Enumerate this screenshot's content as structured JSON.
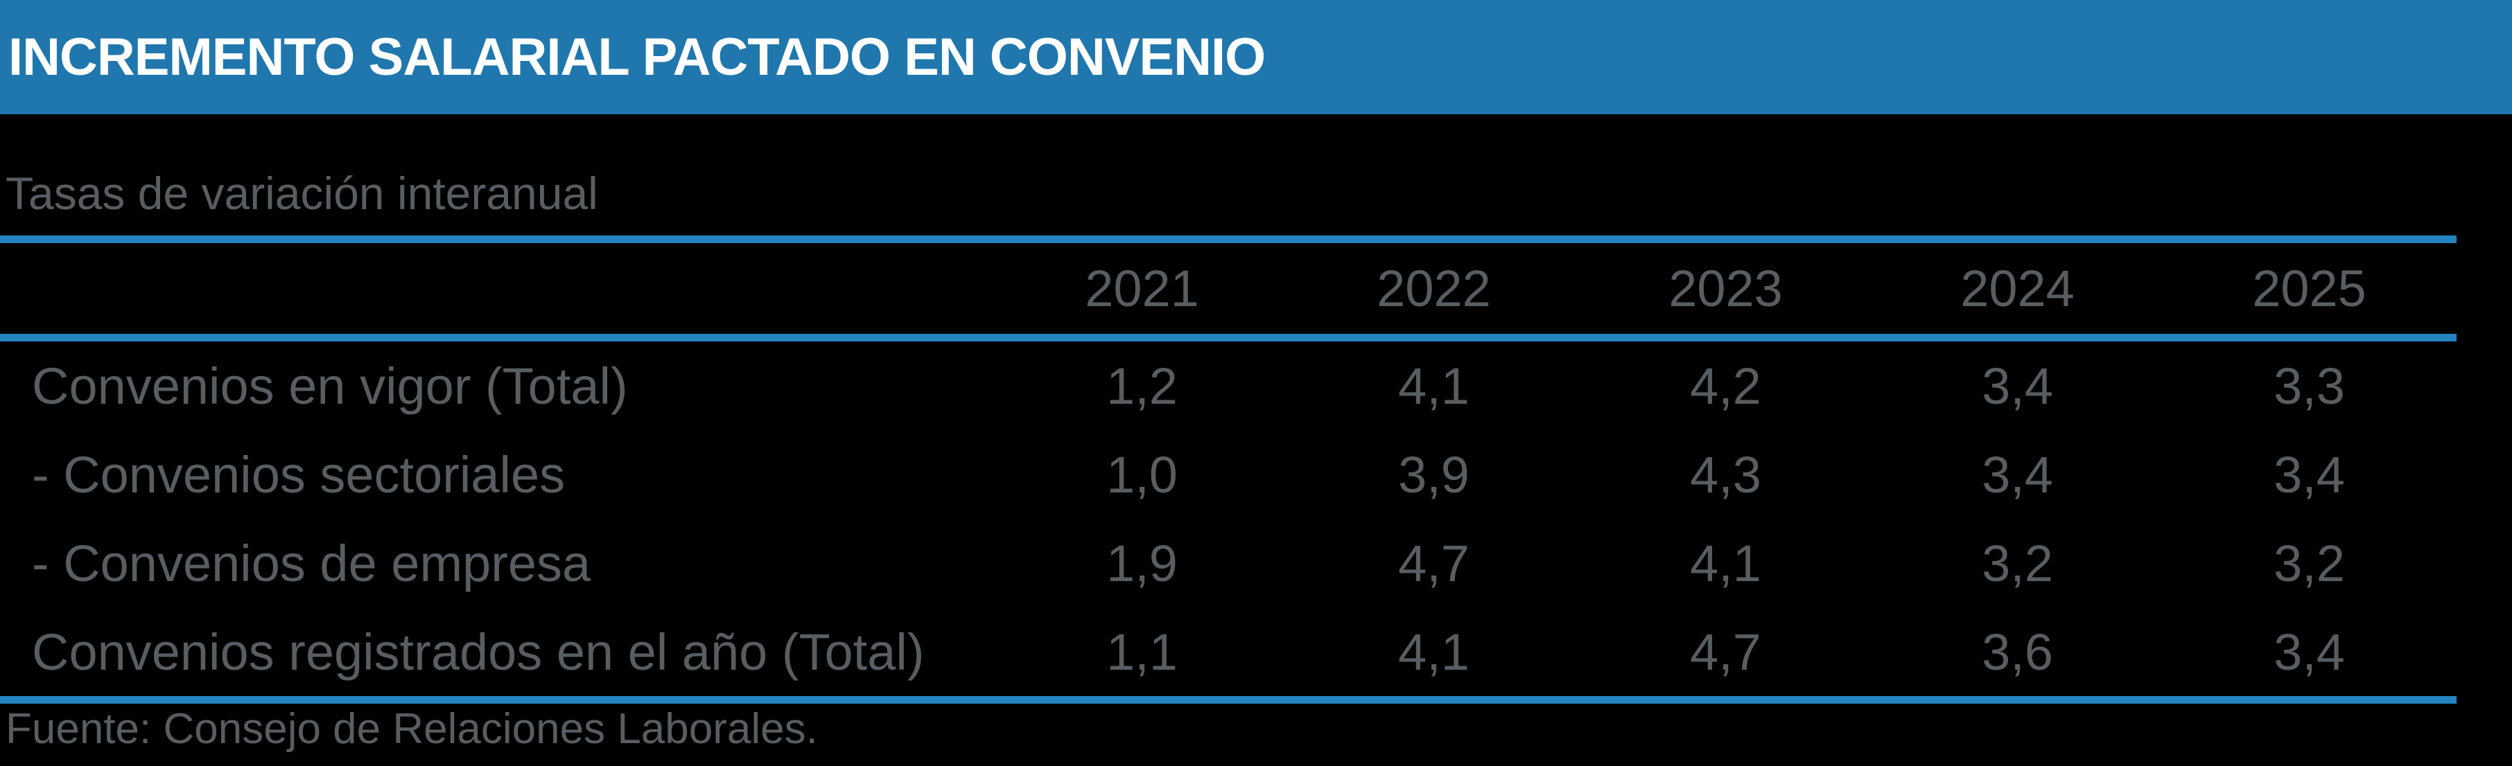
{
  "title_bar": {
    "title": "INCREMENTO SALARIAL PACTADO EN CONVENIO"
  },
  "subtitle": "Tasas de variación interanual",
  "source_note": "Fuente: Consejo de Relaciones Laborales.",
  "colors": {
    "background": "#000000",
    "header_bar": "#1F77AE",
    "rule_blue": "#2484C2",
    "text_gray": "#585D61",
    "title_text": "#FFFFFF"
  },
  "chart_data": {
    "type": "table",
    "title": "INCREMENTO SALARIAL PACTADO EN CONVENIO",
    "subtitle": "Tasas de variación interanual",
    "source": "Fuente: Consejo de Relaciones Laborales.",
    "columns": [
      "2021",
      "2022",
      "2023",
      "2024",
      "2025"
    ],
    "rows": [
      {
        "label": "Convenios en vigor (Total)",
        "values": [
          "1,2",
          "4,1",
          "4,2",
          "3,4",
          "3,3"
        ]
      },
      {
        "label": "- Convenios sectoriales",
        "values": [
          "1,0",
          "3,9",
          "4,3",
          "3,4",
          "3,4"
        ]
      },
      {
        "label": "- Convenios de empresa",
        "values": [
          "1,9",
          "4,7",
          "4,1",
          "3,2",
          "3,2"
        ]
      },
      {
        "label": "Convenios registrados en el año (Total)",
        "values": [
          "1,1",
          "4,1",
          "4,7",
          "3,6",
          "3,4"
        ]
      }
    ],
    "values_numeric": [
      [
        1.2,
        4.1,
        4.2,
        3.4,
        3.3
      ],
      [
        1.0,
        3.9,
        4.3,
        3.4,
        3.4
      ],
      [
        1.9,
        4.7,
        4.1,
        3.2,
        3.2
      ],
      [
        1.1,
        4.1,
        4.7,
        3.6,
        3.4
      ]
    ],
    "unit": "%",
    "decimal_separator": ","
  }
}
